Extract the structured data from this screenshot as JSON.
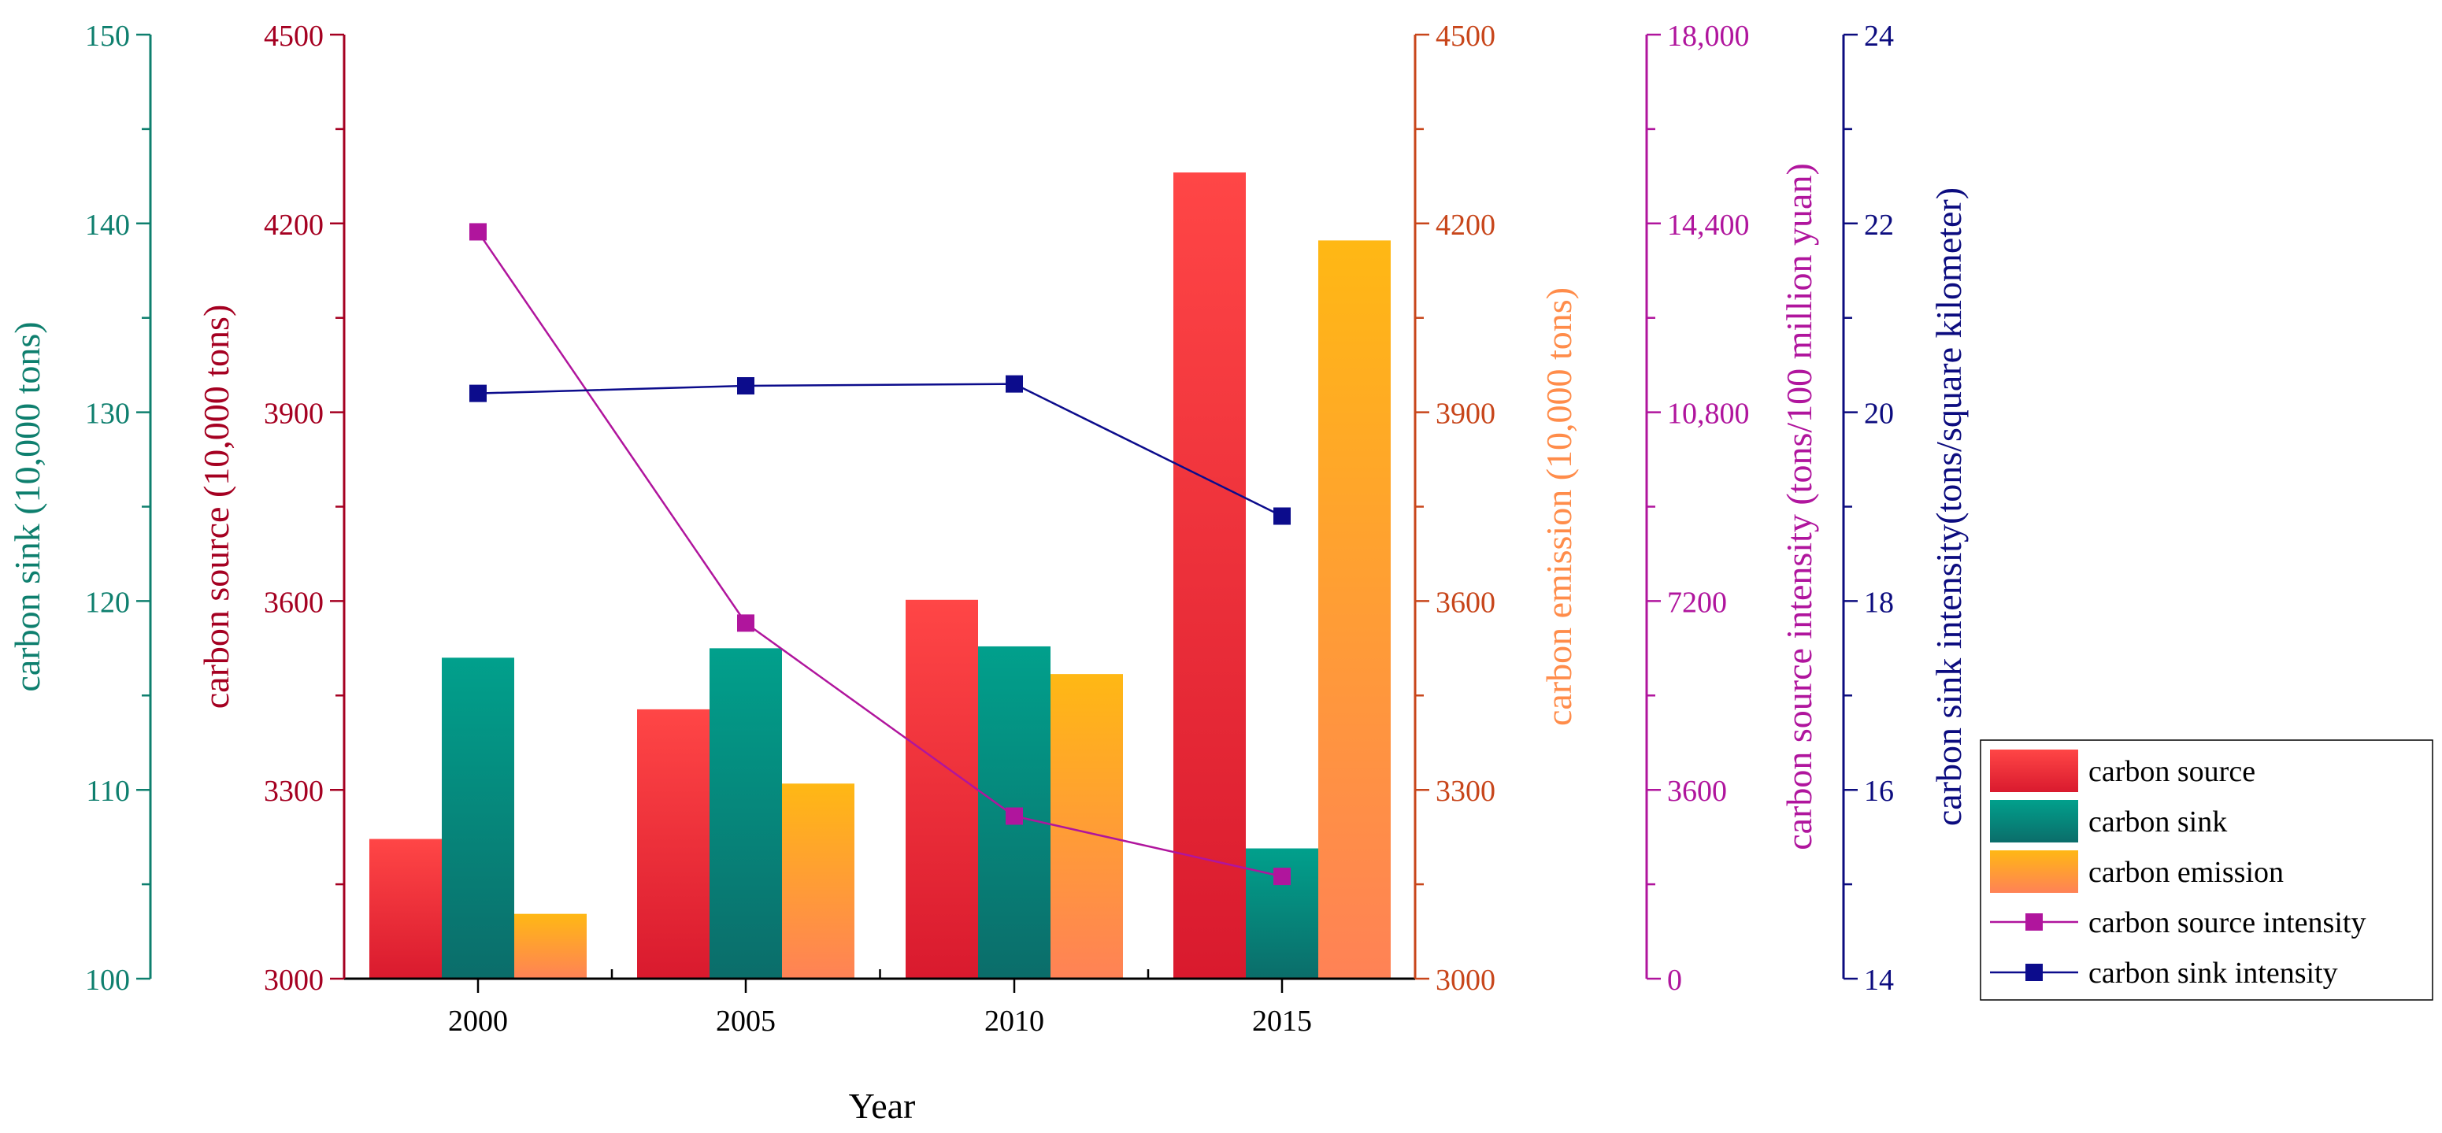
{
  "chart_data": {
    "type": "bar",
    "xlabel": "Year",
    "categories": [
      "2000",
      "2005",
      "2010",
      "2015"
    ],
    "series": [
      {
        "name": "carbon source",
        "kind": "bar",
        "axis": "source",
        "values": [
          3222,
          3428,
          3602,
          4281
        ]
      },
      {
        "name": "carbon sink",
        "kind": "bar",
        "axis": "sink",
        "values": [
          117,
          117.5,
          117.6,
          106.9
        ]
      },
      {
        "name": "carbon emission",
        "kind": "bar",
        "axis": "emission",
        "values": [
          3103,
          3310,
          3484,
          4173
        ]
      },
      {
        "name": "carbon source intensity",
        "kind": "line",
        "axis": "source_intensity",
        "values": [
          14240,
          6780,
          3100,
          1950
        ]
      },
      {
        "name": "carbon sink intensity",
        "kind": "line",
        "axis": "sink_intensity",
        "values": [
          20.2,
          20.28,
          20.3,
          18.9
        ]
      }
    ],
    "axes": {
      "sink": {
        "label": "carbon sink (10,000 tons)",
        "min": 100,
        "max": 150,
        "ticks": [
          "100",
          "110",
          "120",
          "130",
          "140",
          "150"
        ],
        "color": "#0E7F6E"
      },
      "source": {
        "label": "carbon source (10,000 tons)",
        "min": 3000,
        "max": 4500,
        "ticks": [
          "3000",
          "3300",
          "3600",
          "3900",
          "4200",
          "4500"
        ],
        "color": "#A50021"
      },
      "emission": {
        "label": "carbon emission (10,000 tons)",
        "min": 3000,
        "max": 4500,
        "ticks": [
          "3000",
          "3300",
          "3600",
          "3900",
          "4200",
          "4500"
        ],
        "color": "#C8461B",
        "label_color": "#FF8C4A"
      },
      "source_intensity": {
        "label": "carbon source intensity (tons/100 million yuan)",
        "min": 0,
        "max": 18000,
        "ticks": [
          "0",
          "3600",
          "7200",
          "10,800",
          "14,400",
          "18,000"
        ],
        "color": "#B0159D"
      },
      "sink_intensity": {
        "label": "carbon sink intensity(tons/square kilometer)",
        "min": 14,
        "max": 24,
        "ticks": [
          "14",
          "16",
          "18",
          "20",
          "22",
          "24"
        ],
        "color": "#0C0C7F"
      }
    },
    "legend": {
      "placement": "right"
    },
    "colors": {
      "source_top": "#FF4646",
      "source_bottom": "#D91A2E",
      "sink_top": "#01A08C",
      "sink_bottom": "#0B6D6A",
      "emission_top": "#FFB814",
      "emission_bottom": "#FF8256",
      "source_intensity": "#B0159D",
      "sink_intensity": "#0C0C8C",
      "frame": "#000000"
    }
  }
}
